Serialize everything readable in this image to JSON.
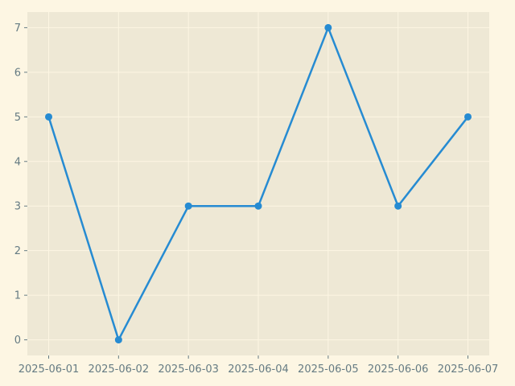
{
  "chart_data": {
    "type": "line",
    "x": [
      "2025-06-01",
      "2025-06-02",
      "2025-06-03",
      "2025-06-04",
      "2025-06-05",
      "2025-06-06",
      "2025-06-07"
    ],
    "series": [
      {
        "values": [
          5,
          0,
          3,
          3,
          7,
          3,
          5
        ]
      }
    ],
    "title": "",
    "xlabel": "",
    "ylabel": "",
    "ylim": [
      -0.35,
      7.35
    ],
    "yticks": [
      0,
      1,
      2,
      3,
      4,
      5,
      6,
      7
    ],
    "grid": true,
    "legend": "none",
    "colors": {
      "line": "#268bd2",
      "plot_background": "#eee8d5",
      "figure_background": "#fdf6e3",
      "grid": "#fdf6e3",
      "tick_text": "#657b83"
    }
  }
}
